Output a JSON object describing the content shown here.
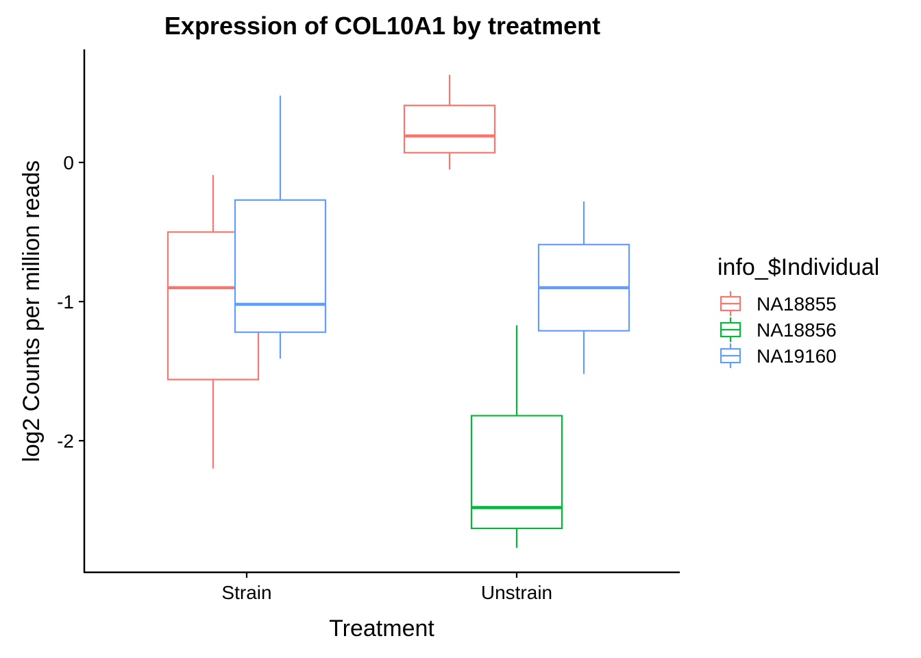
{
  "chart_data": {
    "type": "boxplot",
    "title": "Expression of COL10A1 by treatment",
    "xlabel": "Treatment",
    "ylabel": "log2 Counts per million reads",
    "categories": [
      "Strain",
      "Unstrain"
    ],
    "y_ticks": [
      0,
      -1,
      -2
    ],
    "y_tick_labels": [
      "0",
      "-1",
      "-2"
    ],
    "ylim": [
      -2.92,
      0.8
    ],
    "grid": false,
    "legend": {
      "title": "info_$Individual",
      "placement": "right"
    },
    "series": [
      {
        "name": "NA18855",
        "color": "#F8766D",
        "boxes": [
          {
            "category": "Strain",
            "min": -2.2,
            "q1": -1.56,
            "median": -0.9,
            "q3": -0.5,
            "max": -0.09
          },
          {
            "category": "Unstrain",
            "min": -0.05,
            "q1": 0.07,
            "median": 0.19,
            "q3": 0.41,
            "max": 0.63
          }
        ]
      },
      {
        "name": "NA18856",
        "color": "#00BA38",
        "boxes": [
          {
            "category": "Unstrain",
            "min": -2.77,
            "q1": -2.63,
            "median": -2.48,
            "q3": -1.82,
            "max": -1.17
          }
        ]
      },
      {
        "name": "NA19160",
        "color": "#619CFF",
        "boxes": [
          {
            "category": "Strain",
            "min": -1.41,
            "q1": -1.22,
            "median": -1.02,
            "q3": -0.27,
            "max": 0.48
          },
          {
            "category": "Unstrain",
            "min": -1.52,
            "q1": -1.21,
            "median": -0.9,
            "q3": -0.59,
            "max": -0.28
          }
        ]
      }
    ]
  }
}
